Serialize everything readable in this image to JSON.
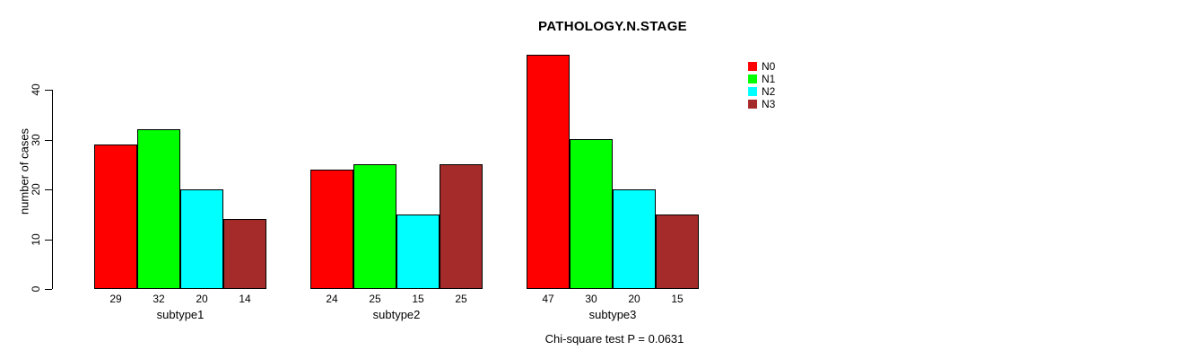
{
  "title": "PATHOLOGY.N.STAGE",
  "chart_data": {
    "type": "bar",
    "title": "PATHOLOGY.N.STAGE",
    "categories": [
      "subtype1",
      "subtype2",
      "subtype3"
    ],
    "series": [
      {
        "name": "N0",
        "color": "#ff0000",
        "values": [
          29,
          24,
          47
        ]
      },
      {
        "name": "N1",
        "color": "#00ff00",
        "values": [
          32,
          25,
          30
        ]
      },
      {
        "name": "N2",
        "color": "#00ffff",
        "values": [
          20,
          15,
          20
        ]
      },
      {
        "name": "N3",
        "color": "#a52a2a",
        "values": [
          14,
          25,
          15
        ]
      }
    ],
    "xlabel": "",
    "ylabel": "number of cases",
    "yticks": [
      0,
      10,
      20,
      30,
      40
    ],
    "ylim": [
      0,
      47
    ],
    "bar_value_labels": true,
    "grid": false,
    "legend_position": "top-right",
    "annotation": "Chi-square test P = 0.0631"
  }
}
